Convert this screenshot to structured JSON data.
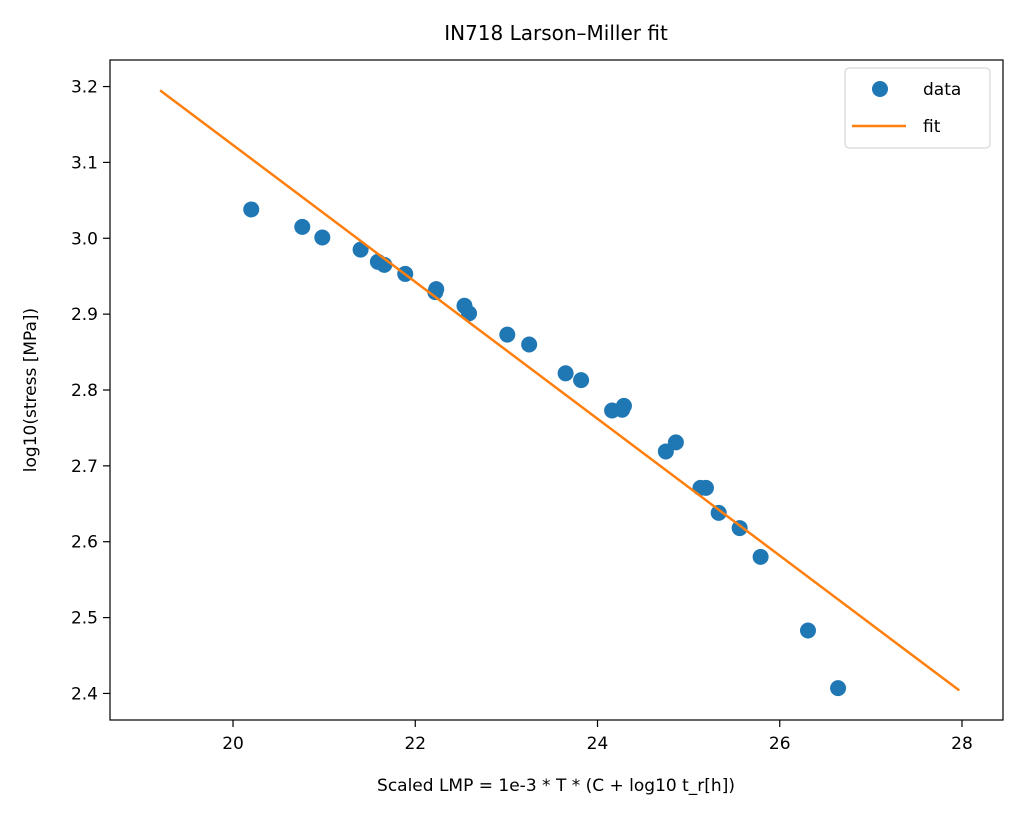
{
  "chart_data": {
    "type": "scatter",
    "title": "IN718 Larson–Miller fit",
    "xlabel": "Scaled LMP = 1e-3 * T * (C + log10 t_r[h])",
    "ylabel": "log10(stress [MPa])",
    "xlim": [
      18.65,
      28.45
    ],
    "ylim": [
      2.365,
      3.235
    ],
    "xticks": [
      20,
      22,
      24,
      26,
      28
    ],
    "yticks": [
      2.4,
      2.5,
      2.6,
      2.7,
      2.8,
      2.9,
      3.0,
      3.1,
      3.2
    ],
    "grid": false,
    "legend_position": "top-right",
    "series": [
      {
        "name": "data",
        "kind": "markers",
        "color": "#1f77b4",
        "points": [
          [
            20.2,
            3.038
          ],
          [
            20.76,
            3.015
          ],
          [
            20.98,
            3.001
          ],
          [
            21.4,
            2.985
          ],
          [
            21.59,
            2.969
          ],
          [
            21.66,
            2.965
          ],
          [
            21.89,
            2.953
          ],
          [
            22.22,
            2.929
          ],
          [
            22.23,
            2.933
          ],
          [
            22.54,
            2.911
          ],
          [
            22.59,
            2.901
          ],
          [
            23.01,
            2.873
          ],
          [
            23.25,
            2.86
          ],
          [
            23.65,
            2.822
          ],
          [
            23.82,
            2.813
          ],
          [
            24.16,
            2.773
          ],
          [
            24.27,
            2.774
          ],
          [
            24.29,
            2.779
          ],
          [
            24.75,
            2.719
          ],
          [
            24.86,
            2.731
          ],
          [
            25.13,
            2.671
          ],
          [
            25.19,
            2.671
          ],
          [
            25.33,
            2.638
          ],
          [
            25.56,
            2.618
          ],
          [
            25.79,
            2.58
          ],
          [
            26.31,
            2.483
          ],
          [
            26.64,
            2.407
          ]
        ]
      },
      {
        "name": "fit",
        "kind": "line",
        "color": "#ff7f0e",
        "points": [
          [
            19.2,
            3.195
          ],
          [
            27.97,
            2.404
          ]
        ]
      }
    ]
  }
}
